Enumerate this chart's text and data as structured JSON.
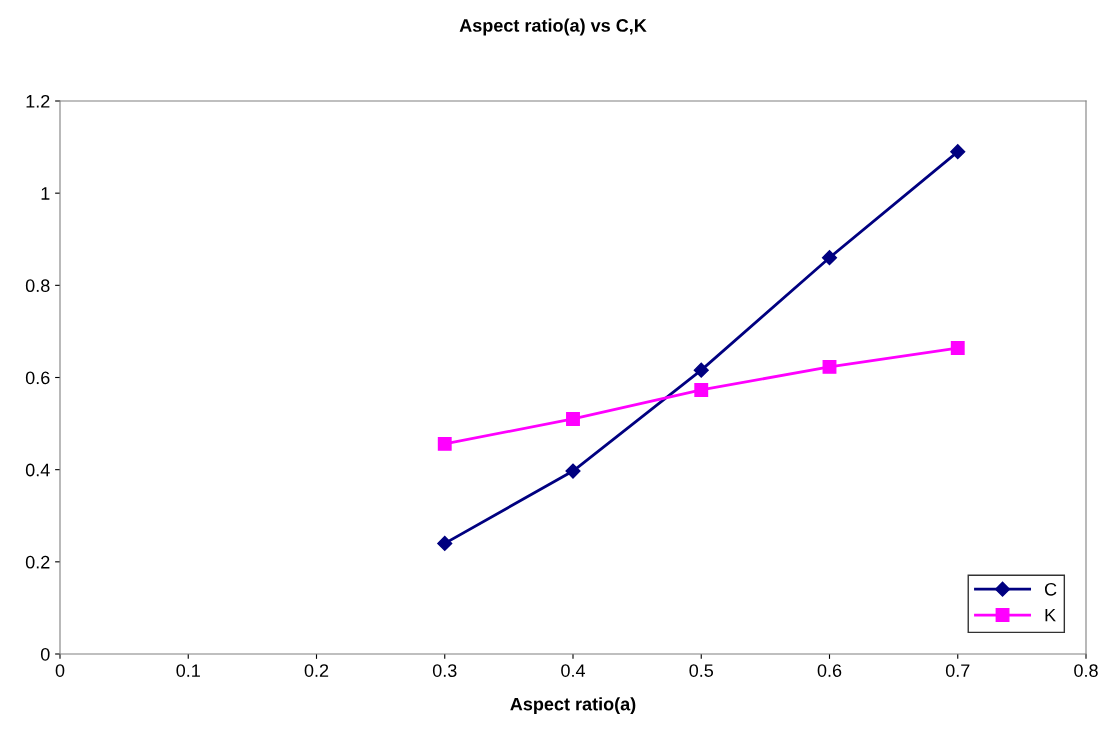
{
  "chart_data": {
    "type": "line",
    "title": "Aspect ratio(a) vs C,K",
    "xlabel": "Aspect ratio(a)",
    "x": [
      0.3,
      0.4,
      0.5,
      0.6,
      0.7
    ],
    "series": [
      {
        "name": "C",
        "color": "#000080",
        "marker": "diamond",
        "values": [
          0.24,
          0.397,
          0.616,
          0.86,
          1.09
        ]
      },
      {
        "name": "K",
        "color": "#ff00ff",
        "marker": "square",
        "values": [
          0.456,
          0.51,
          0.573,
          0.623,
          0.664
        ]
      }
    ],
    "xlim": [
      0,
      0.8
    ],
    "xticks": [
      0,
      0.1,
      0.2,
      0.3,
      0.4,
      0.5,
      0.6,
      0.7,
      0.8
    ],
    "ylim": [
      0,
      1.2
    ],
    "yticks": [
      0,
      0.2,
      0.4,
      0.6,
      0.8,
      1,
      1.2
    ],
    "grid": false,
    "legend": "bottom right",
    "line_style": "solid"
  }
}
